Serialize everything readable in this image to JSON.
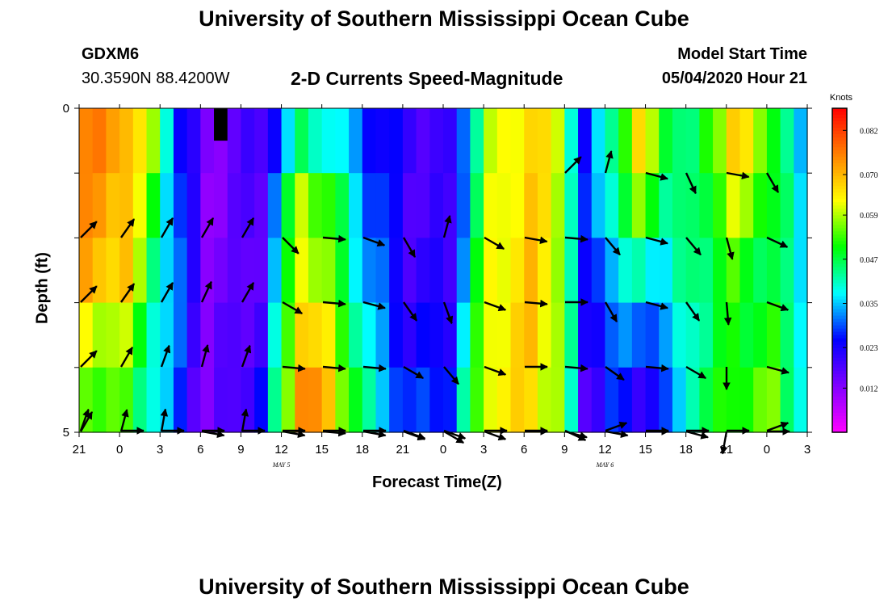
{
  "header": {
    "title_top": "University of Southern Mississippi Ocean Cube",
    "station_id": "GDXM6",
    "coordinates": "30.3590N 88.4200W",
    "chart_title": "2-D Currents Speed-Magnitude",
    "model_start_label": "Model Start Time",
    "model_start_value": "05/04/2020 Hour 21",
    "title_bottom": "University of Southern Mississippi Ocean Cube"
  },
  "chart_data": {
    "type": "heatmap",
    "xlabel": "Forecast Time(Z)",
    "ylabel": "Depth (ft)",
    "colorbar_unit": "Knots",
    "x_ticks": [
      "21",
      "0",
      "3",
      "6",
      "9",
      "12",
      "15",
      "18",
      "21",
      "0",
      "3",
      "6",
      "9",
      "12",
      "15",
      "18",
      "21",
      "0",
      "3"
    ],
    "x_sublabels": [
      {
        "at_tick": 5,
        "text": "MAY 5"
      },
      {
        "at_tick": 13,
        "text": "MAY 6"
      }
    ],
    "y_ticks": [
      "0",
      "5"
    ],
    "ylim": [
      0,
      5
    ],
    "depth_levels": 5,
    "time_columns": 54,
    "hours_per_column": 1,
    "colorbar_ticks": [
      0.082,
      0.07,
      0.059,
      0.047,
      0.035,
      0.023,
      0.012
    ],
    "colorbar_range": [
      0.0,
      0.088
    ],
    "colorscale": [
      "#ff00ff",
      "#8000ff",
      "#0000ff",
      "#00ffff",
      "#00ff00",
      "#ffff00",
      "#ff8000",
      "#ff0000"
    ],
    "speed_keyframes": {
      "hours": [
        0,
        3,
        5,
        7,
        9,
        11,
        13,
        16,
        18,
        21,
        24,
        27,
        30,
        33,
        35,
        37,
        39,
        41,
        43,
        45,
        48,
        51,
        53
      ],
      "rows": [
        [
          0.075,
          0.072,
          0.056,
          0.026,
          0.012,
          0.016,
          0.018,
          0.044,
          0.04,
          0.027,
          0.02,
          0.018,
          0.058,
          0.068,
          0.06,
          0.024,
          0.044,
          0.065,
          0.05,
          0.042,
          0.068,
          0.052,
          0.032
        ],
        [
          0.073,
          0.07,
          0.05,
          0.027,
          0.012,
          0.015,
          0.018,
          0.06,
          0.052,
          0.03,
          0.019,
          0.018,
          0.06,
          0.068,
          0.06,
          0.025,
          0.042,
          0.055,
          0.045,
          0.043,
          0.06,
          0.05,
          0.036
        ],
        [
          0.07,
          0.068,
          0.046,
          0.028,
          0.014,
          0.014,
          0.018,
          0.064,
          0.055,
          0.032,
          0.02,
          0.02,
          0.062,
          0.068,
          0.06,
          0.022,
          0.036,
          0.04,
          0.038,
          0.044,
          0.052,
          0.046,
          0.038
        ],
        [
          0.062,
          0.058,
          0.042,
          0.028,
          0.014,
          0.016,
          0.02,
          0.07,
          0.062,
          0.036,
          0.022,
          0.024,
          0.063,
          0.068,
          0.06,
          0.022,
          0.03,
          0.03,
          0.032,
          0.042,
          0.05,
          0.05,
          0.04
        ],
        [
          0.056,
          0.052,
          0.04,
          0.026,
          0.012,
          0.018,
          0.024,
          0.076,
          0.068,
          0.04,
          0.026,
          0.028,
          0.064,
          0.066,
          0.058,
          0.018,
          0.026,
          0.022,
          0.026,
          0.044,
          0.052,
          0.055,
          0.04
        ]
      ]
    },
    "vector_direction_deg": [
      [
        null,
        null,
        null,
        null,
        null,
        null,
        null,
        null,
        null,
        null,
        null,
        null,
        45,
        15,
        105,
        155,
        100,
        150
      ],
      [
        45,
        35,
        30,
        30,
        30,
        135,
        95,
        110,
        150,
        15,
        120,
        100,
        95,
        140,
        105,
        140,
        165,
        115
      ],
      [
        45,
        35,
        30,
        25,
        30,
        120,
        95,
        105,
        145,
        160,
        110,
        95,
        90,
        150,
        105,
        145,
        175,
        110
      ],
      [
        45,
        30,
        20,
        15,
        20,
        95,
        95,
        95,
        120,
        140,
        110,
        90,
        95,
        125,
        95,
        120,
        180,
        105
      ],
      [
        30,
        15,
        10,
        100,
        10,
        100,
        95,
        100,
        110,
        120,
        110,
        90,
        105,
        100,
        90,
        105,
        190,
        90
      ]
    ],
    "vector_bottom_deg": [
      20,
      90,
      90,
      90,
      90,
      90,
      90,
      90,
      110,
      110,
      90,
      90,
      115,
      70,
      90,
      90,
      90,
      70
    ],
    "missing_cell": {
      "hour": 10,
      "depth_row": 0
    }
  }
}
